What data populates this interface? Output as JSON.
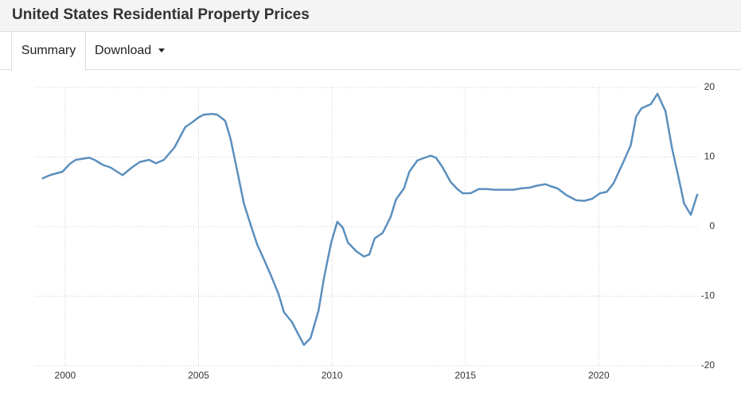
{
  "header": {
    "title": "United States Residential Property Prices"
  },
  "tabs": [
    "Summary",
    "Download"
  ],
  "chart_data": {
    "type": "line",
    "x": [
      1999.13,
      1999.43,
      1999.9,
      2000.2,
      2000.4,
      2000.9,
      2001.1,
      2001.4,
      2001.7,
      2002.15,
      2002.5,
      2002.8,
      2003.15,
      2003.4,
      2003.7,
      2004.1,
      2004.5,
      2004.8,
      2005.0,
      2005.2,
      2005.5,
      2005.7,
      2006.0,
      2006.2,
      2006.45,
      2006.7,
      2007.0,
      2007.2,
      2007.45,
      2007.7,
      2008.0,
      2008.2,
      2008.5,
      2008.7,
      2008.95,
      2009.2,
      2009.5,
      2009.7,
      2009.97,
      2010.2,
      2010.4,
      2010.6,
      2010.9,
      2011.2,
      2011.4,
      2011.6,
      2011.9,
      2012.2,
      2012.4,
      2012.7,
      2012.9,
      2013.2,
      2013.4,
      2013.7,
      2013.9,
      2014.15,
      2014.45,
      2014.7,
      2014.9,
      2015.2,
      2015.5,
      2015.8,
      2016.1,
      2016.5,
      2016.8,
      2017.1,
      2017.4,
      2017.7,
      2018.0,
      2018.2,
      2018.45,
      2018.8,
      2019.15,
      2019.45,
      2019.75,
      2020.05,
      2020.3,
      2020.55,
      2020.9,
      2021.2,
      2021.4,
      2021.6,
      2021.95,
      2022.2,
      2022.5,
      2022.75,
      2023.0,
      2023.2,
      2023.45,
      2023.7
    ],
    "series": [
      {
        "name": "Residential Property Prices",
        "color": "#5b8fbe",
        "values": [
          6.9,
          7.4,
          7.9,
          9.1,
          9.6,
          9.9,
          9.6,
          8.9,
          8.5,
          7.4,
          8.5,
          9.3,
          9.6,
          9.1,
          9.6,
          11.4,
          14.3,
          15.1,
          15.7,
          16.1,
          16.2,
          16.1,
          15.2,
          12.6,
          8.0,
          3.3,
          -0.3,
          -2.6,
          -4.7,
          -6.9,
          -9.7,
          -12.3,
          -13.7,
          -15.2,
          -17.0,
          -16.0,
          -12.0,
          -7.4,
          -2.3,
          0.7,
          -0.1,
          -2.3,
          -3.5,
          -4.3,
          -4.0,
          -1.7,
          -0.9,
          1.4,
          3.9,
          5.5,
          7.9,
          9.5,
          9.8,
          10.2,
          9.9,
          8.5,
          6.4,
          5.4,
          4.8,
          4.8,
          5.4,
          5.4,
          5.3,
          5.3,
          5.3,
          5.5,
          5.6,
          5.9,
          6.1,
          5.8,
          5.5,
          4.5,
          3.8,
          3.7,
          4.0,
          4.8,
          5.0,
          6.2,
          9.1,
          11.7,
          15.8,
          17.0,
          17.6,
          19.1,
          16.6,
          11.2,
          6.9,
          3.3,
          1.7,
          4.7
        ]
      }
    ],
    "xlim": [
      1998.9,
      2023.75
    ],
    "xticks": [
      2000,
      2005,
      2010,
      2015,
      2020
    ],
    "ylim": [
      -20,
      20
    ],
    "yticks": [
      -20,
      -10,
      0,
      10,
      20
    ],
    "grid": true
  }
}
